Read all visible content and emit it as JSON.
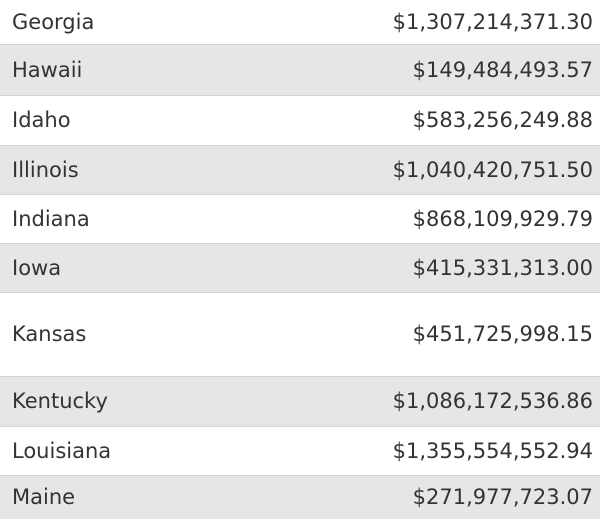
{
  "table": {
    "rows": [
      [
        "Georgia",
        "$1,307,214,371.30"
      ],
      [
        "Hawaii",
        "$149,484,493.57"
      ],
      [
        "Idaho",
        "$583,256,249.88"
      ],
      [
        "Illinois",
        "$1,040,420,751.50"
      ],
      [
        "Indiana",
        "$868,109,929.79"
      ],
      [
        "Iowa",
        "$415,331,313.00"
      ],
      [
        "Kansas",
        "$451,725,998.15"
      ],
      [
        "Kentucky",
        "$1,086,172,536.86"
      ],
      [
        "Louisiana",
        "$1,355,554,552.94"
      ],
      [
        "Maine",
        "$271,977,723.07"
      ]
    ]
  }
}
